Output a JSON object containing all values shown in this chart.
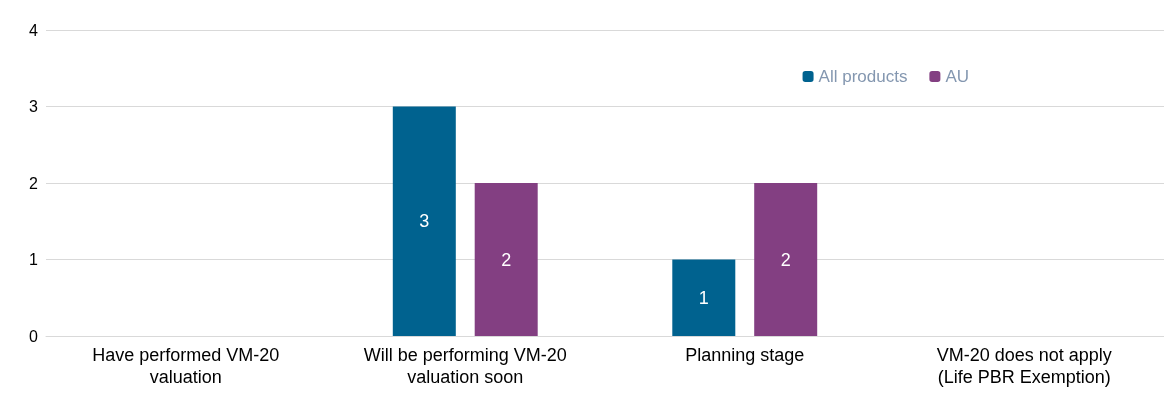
{
  "chart_data": {
    "type": "bar",
    "categories": [
      "Have performed VM-20\nvaluation",
      "Will be performing VM-20\nvaluation soon",
      "Planning stage",
      "VM-20 does not apply\n(Life PBR Exemption)"
    ],
    "series": [
      {
        "name": "All products",
        "color": "#00628f",
        "values": [
          0,
          3,
          1,
          0
        ],
        "value_labels": [
          null,
          "3",
          "1",
          null
        ]
      },
      {
        "name": "AU",
        "color": "#833f82",
        "values": [
          0,
          2,
          2,
          0
        ],
        "value_labels": [
          null,
          "2",
          "2",
          null
        ]
      }
    ],
    "ylim": [
      0,
      4
    ],
    "yticks": [
      0,
      1,
      2,
      3,
      4
    ],
    "grid": "y",
    "legend": "top right"
  }
}
